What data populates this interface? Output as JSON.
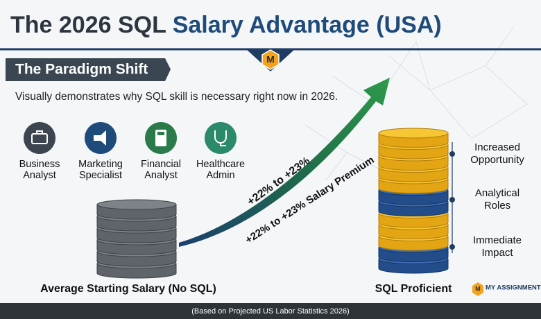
{
  "header": {
    "title_dark": "The 2026 SQL",
    "title_accent": "Salary Advantage (USA)",
    "logo": "M"
  },
  "banner": "The Paradigm Shift",
  "subtitle": "Visually demonstrates why SQL skill is necessary right now in 2026.",
  "roles": [
    {
      "lines": [
        "Business",
        "Analyst"
      ]
    },
    {
      "lines": [
        "Marketing",
        "Specialist"
      ]
    },
    {
      "lines": [
        "Financial",
        "Analyst"
      ]
    },
    {
      "lines": [
        "Healthcare",
        "Admin"
      ]
    }
  ],
  "arrow": {
    "label_top": "+22% to +23%",
    "label_bottom": "+22% to +23% Salary Premium"
  },
  "left_stack": {
    "label": "Average Starting Salary (No SQL)"
  },
  "right_stack": {
    "label": "SQL Proficient"
  },
  "benefits": [
    {
      "lines": [
        "Increased",
        "Opportunity"
      ]
    },
    {
      "lines": [
        "Analytical",
        "Roles"
      ]
    },
    {
      "lines": [
        "Immediate",
        "Impact"
      ]
    }
  ],
  "brand": "MY ASSIGNMENT H",
  "footer": "(Based on Projected US Labor Statistics 2026)"
}
